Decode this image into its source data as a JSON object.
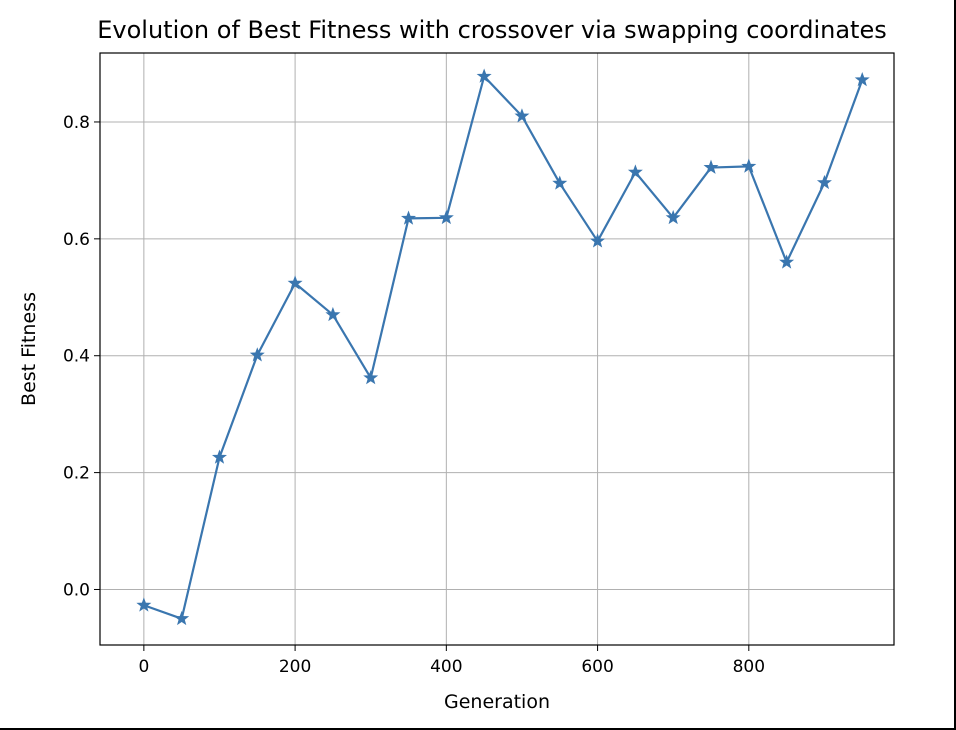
{
  "chart_data": {
    "type": "line",
    "title": "Evolution of Best Fitness with crossover via swapping coordinates",
    "xlabel": "Generation",
    "ylabel": "Best Fitness",
    "xlim": [
      -58,
      992
    ],
    "ylim": [
      -0.095,
      0.918
    ],
    "xticks": [
      0,
      200,
      400,
      600,
      800
    ],
    "xtick_labels": [
      "0",
      "200",
      "400",
      "600",
      "800"
    ],
    "yticks": [
      0.0,
      0.2,
      0.4,
      0.6,
      0.8
    ],
    "ytick_labels": [
      "0.0",
      "0.2",
      "0.4",
      "0.6",
      "0.8"
    ],
    "grid": true,
    "marker": "star",
    "color": "#3a76af",
    "series": [
      {
        "x": [
          0,
          50,
          100,
          150,
          200,
          250,
          300,
          350,
          400,
          450,
          500,
          550,
          600,
          650,
          700,
          750,
          800,
          850,
          900,
          950
        ],
        "y": [
          -0.027,
          -0.05,
          0.226,
          0.401,
          0.524,
          0.47,
          0.362,
          0.635,
          0.636,
          0.878,
          0.81,
          0.695,
          0.596,
          0.714,
          0.636,
          0.722,
          0.724,
          0.56,
          0.696,
          0.872
        ]
      }
    ]
  }
}
